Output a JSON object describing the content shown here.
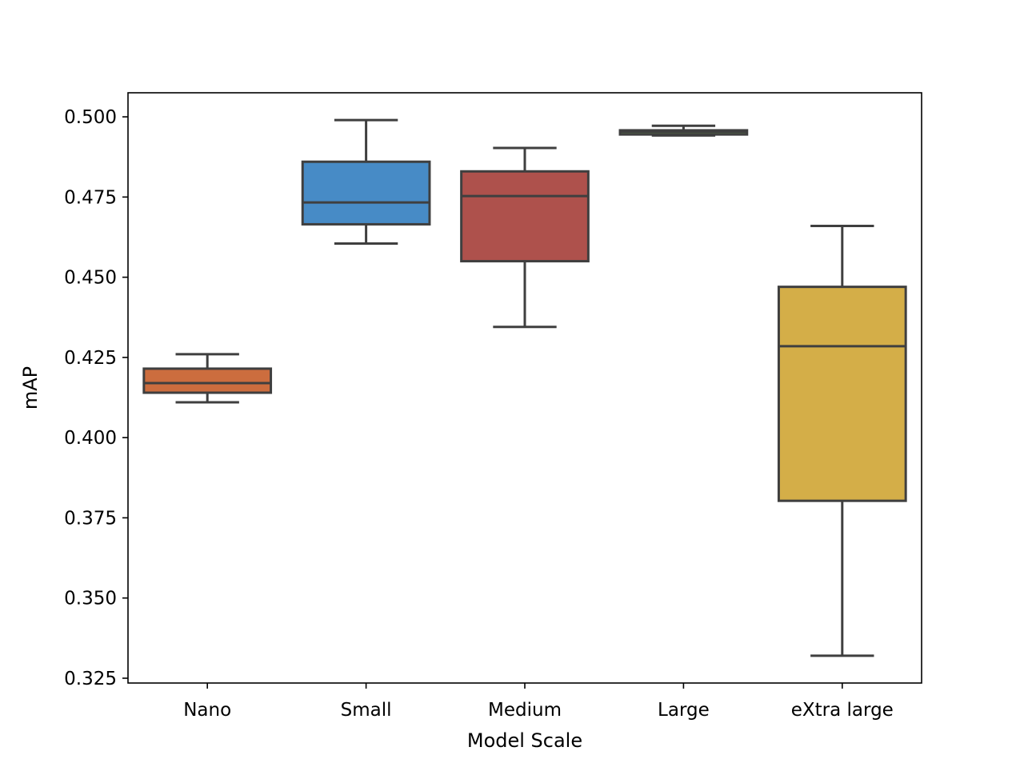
{
  "chart_data": {
    "type": "box",
    "title": "",
    "xlabel": "Model Scale",
    "ylabel": "mAP",
    "ylim": [
      0.3235,
      0.5075
    ],
    "yticks": [
      0.325,
      0.35,
      0.375,
      0.4,
      0.425,
      0.45,
      0.475,
      0.5
    ],
    "ytick_labels": [
      "0.325",
      "0.350",
      "0.375",
      "0.400",
      "0.425",
      "0.450",
      "0.475",
      "0.500"
    ],
    "categories": [
      "Nano",
      "Small",
      "Medium",
      "Large",
      "eXtra large"
    ],
    "grid": false,
    "legend": "none",
    "line_color": "#3f3f3f",
    "boxes": [
      {
        "name": "Nano",
        "whislo": 0.411,
        "q1": 0.414,
        "med": 0.417,
        "q3": 0.4215,
        "whishi": 0.426,
        "color": "#cc6d3e"
      },
      {
        "name": "Small",
        "whislo": 0.4605,
        "q1": 0.4665,
        "med": 0.4733,
        "q3": 0.486,
        "whishi": 0.499,
        "color": "#478bc6"
      },
      {
        "name": "Medium",
        "whislo": 0.4345,
        "q1": 0.455,
        "med": 0.4753,
        "q3": 0.483,
        "whishi": 0.4903,
        "color": "#ae514c"
      },
      {
        "name": "Large",
        "whislo": 0.4942,
        "q1": 0.4945,
        "med": 0.4953,
        "q3": 0.4958,
        "whishi": 0.4972,
        "color": "#5f8f48"
      },
      {
        "name": "eXtra large",
        "whislo": 0.332,
        "q1": 0.3803,
        "med": 0.4285,
        "q3": 0.447,
        "whishi": 0.466,
        "color": "#d4ae48"
      }
    ]
  }
}
